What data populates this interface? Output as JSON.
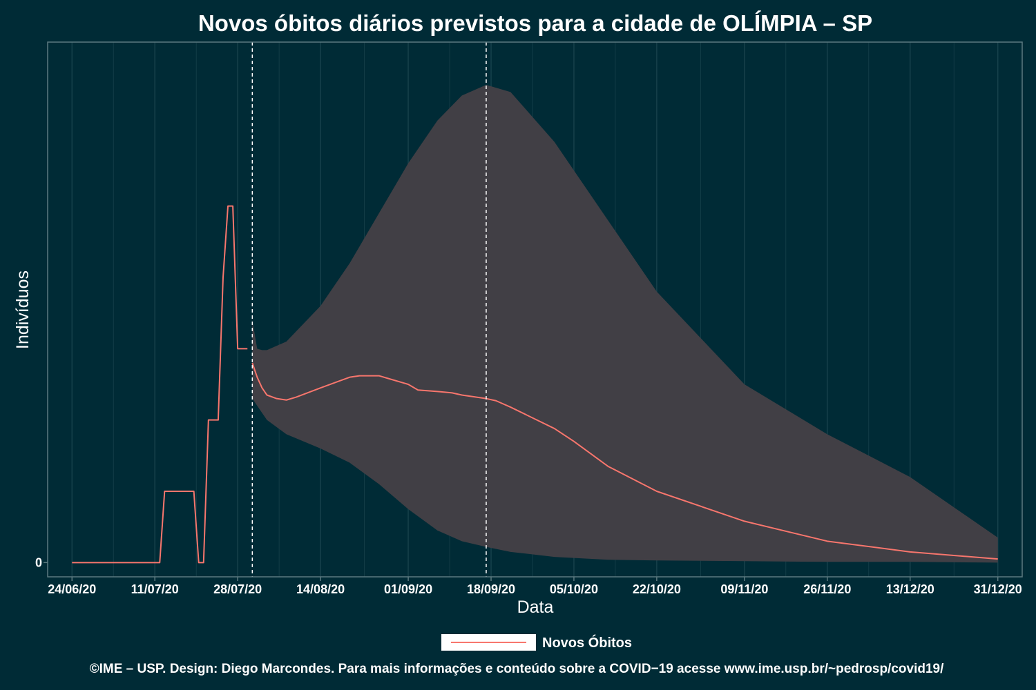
{
  "chart_data": {
    "type": "line",
    "title": "Novos óbitos diários previstos para a cidade de OLÍMPIA – SP",
    "xlabel": "Data",
    "ylabel": "Indivíduos",
    "x_ticks": [
      "24/06/20",
      "11/07/20",
      "28/07/20",
      "14/08/20",
      "01/09/20",
      "18/09/20",
      "05/10/20",
      "22/10/20",
      "09/11/20",
      "26/11/20",
      "13/12/20",
      "31/12/20"
    ],
    "y_ticks": [
      {
        "label": "0",
        "value": 0
      }
    ],
    "x_range": [
      "2020-06-19",
      "2021-01-05"
    ],
    "y_range_note": "only tick 0 labeled",
    "ylim": [
      -0.2,
      7.3
    ],
    "grid": true,
    "legend": {
      "position": "bottom",
      "entries": [
        "Novos Óbitos"
      ]
    },
    "vertical_dashed_lines": [
      "2020-07-31",
      "2020-09-17"
    ],
    "colors": {
      "background": "#002b36",
      "series": "#f8766d",
      "band": "#413f45",
      "dashed": "#ffffff",
      "panel_border": "#5c7a80",
      "grid": "#17414b"
    },
    "series": [
      {
        "name": "Novos Óbitos",
        "kind": "observed",
        "x": [
          "2020-06-24",
          "2020-07-12",
          "2020-07-13",
          "2020-07-19",
          "2020-07-20",
          "2020-07-21",
          "2020-07-22",
          "2020-07-24",
          "2020-07-25",
          "2020-07-26",
          "2020-07-27",
          "2020-07-28",
          "2020-07-29",
          "2020-07-30"
        ],
        "y": [
          0,
          0,
          1,
          1,
          0,
          0,
          2,
          2,
          4,
          5,
          5,
          3,
          3,
          3
        ]
      },
      {
        "name": "Novos Óbitos",
        "kind": "forecast",
        "x": [
          "2020-07-31",
          "2020-08-01",
          "2020-08-02",
          "2020-08-03",
          "2020-08-05",
          "2020-08-07",
          "2020-08-09",
          "2020-08-14",
          "2020-08-18",
          "2020-08-20",
          "2020-08-22",
          "2020-08-24",
          "2020-08-26",
          "2020-08-28",
          "2020-08-31",
          "2020-09-01",
          "2020-09-03",
          "2020-09-07",
          "2020-09-10",
          "2020-09-12",
          "2020-09-17",
          "2020-09-19",
          "2020-09-22",
          "2020-10-01",
          "2020-10-05",
          "2020-10-12",
          "2020-10-22",
          "2020-11-09",
          "2020-11-26",
          "2020-12-13",
          "2020-12-31"
        ],
        "y": [
          2.8,
          2.6,
          2.45,
          2.35,
          2.3,
          2.28,
          2.32,
          2.45,
          2.55,
          2.6,
          2.62,
          2.62,
          2.62,
          2.58,
          2.52,
          2.5,
          2.42,
          2.4,
          2.38,
          2.35,
          2.3,
          2.27,
          2.18,
          1.88,
          1.7,
          1.35,
          1.0,
          0.58,
          0.3,
          0.15,
          0.05
        ]
      }
    ],
    "confidence_band": {
      "x": [
        "2020-07-31",
        "2020-08-01",
        "2020-08-02",
        "2020-08-03",
        "2020-08-07",
        "2020-08-14",
        "2020-08-20",
        "2020-08-26",
        "2020-09-01",
        "2020-09-07",
        "2020-09-12",
        "2020-09-17",
        "2020-09-22",
        "2020-10-01",
        "2020-10-12",
        "2020-10-22",
        "2020-11-09",
        "2020-11-26",
        "2020-12-13",
        "2020-12-31"
      ],
      "lower": [
        2.3,
        2.2,
        2.1,
        2.0,
        1.8,
        1.6,
        1.4,
        1.1,
        0.75,
        0.45,
        0.3,
        0.22,
        0.15,
        0.08,
        0.04,
        0.03,
        0.02,
        0.01,
        0.01,
        0.0
      ],
      "upper": [
        3.4,
        3.0,
        2.98,
        2.98,
        3.1,
        3.6,
        4.2,
        4.9,
        5.6,
        6.2,
        6.55,
        6.7,
        6.6,
        5.9,
        4.8,
        3.8,
        2.5,
        1.8,
        1.2,
        0.35
      ]
    },
    "caption": "©IME – USP. Design: Diego Marcondes. Para mais informações e conteúdo sobre a COVID−19 acesse www.ime.usp.br/~pedrosp/covid19/"
  }
}
